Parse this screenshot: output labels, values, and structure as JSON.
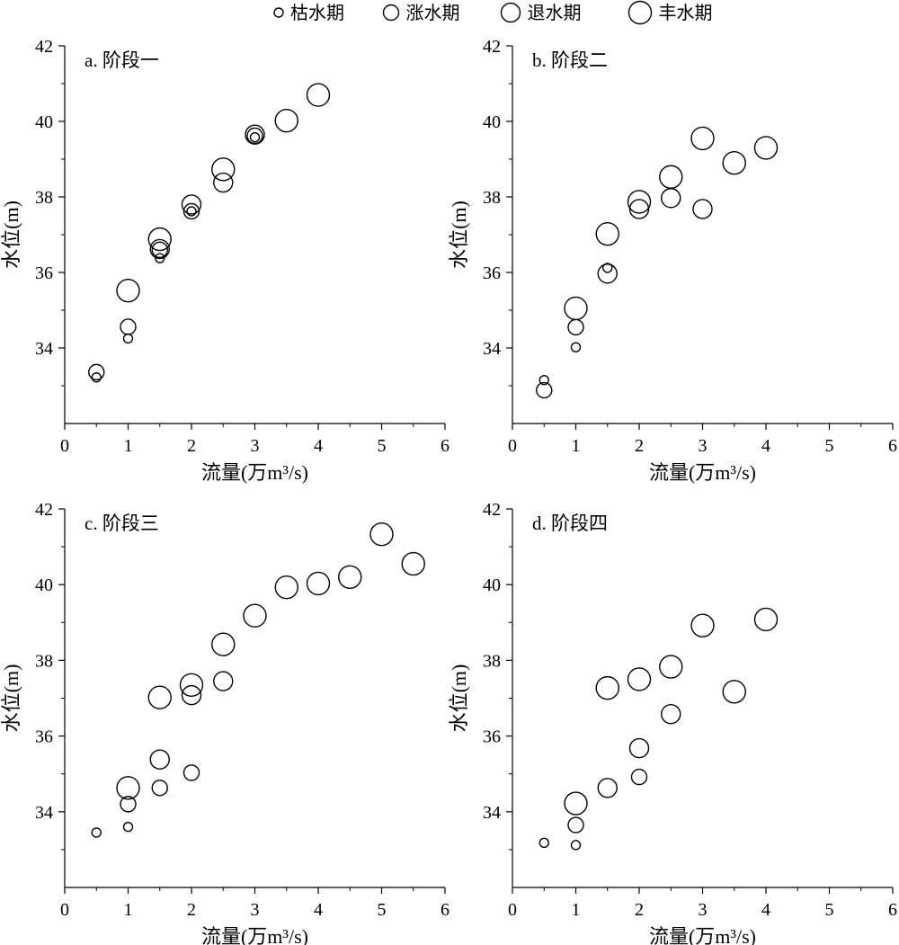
{
  "legend": {
    "entries": [
      {
        "label": "枯水期",
        "size": 1
      },
      {
        "label": "涨水期",
        "size": 2
      },
      {
        "label": "退水期",
        "size": 3
      },
      {
        "label": "丰水期",
        "size": 4
      }
    ]
  },
  "chart_data": [
    {
      "type": "scatter",
      "title": "a. 阶段一",
      "xlabel": "流量(万m³/s)",
      "ylabel": "水位(m)",
      "xlim": [
        0,
        6
      ],
      "ylim": [
        32,
        42
      ],
      "xticks": [
        "0",
        "1",
        "2",
        "3",
        "4",
        "5",
        "6"
      ],
      "yticks": [
        "34",
        "36",
        "38",
        "40",
        "42"
      ],
      "grid": false,
      "series": [
        {
          "name": "枯水期",
          "points": [
            [
              0.5,
              33.22
            ],
            [
              1.0,
              34.25
            ],
            [
              1.5,
              36.38
            ],
            [
              2.0,
              37.62
            ],
            [
              3.0,
              39.58
            ]
          ]
        },
        {
          "name": "涨水期",
          "points": [
            [
              0.5,
              33.36
            ],
            [
              1.0,
              34.56
            ],
            [
              1.5,
              36.6
            ],
            [
              2.0,
              37.62
            ],
            [
              3.0,
              39.62
            ]
          ]
        },
        {
          "name": "退水期",
          "points": [
            [
              1.5,
              36.62
            ],
            [
              2.0,
              37.8
            ],
            [
              2.5,
              38.38
            ],
            [
              3.0,
              39.65
            ]
          ]
        },
        {
          "name": "丰水期",
          "points": [
            [
              1.0,
              35.52
            ],
            [
              1.5,
              36.88
            ],
            [
              2.5,
              38.73
            ],
            [
              3.5,
              40.02
            ],
            [
              4.0,
              40.7
            ]
          ]
        }
      ]
    },
    {
      "type": "scatter",
      "title": "b. 阶段二",
      "xlabel": "流量(万m³/s)",
      "ylabel": "水位(m)",
      "xlim": [
        0,
        6
      ],
      "ylim": [
        32,
        42
      ],
      "xticks": [
        "0",
        "1",
        "2",
        "3",
        "4",
        "5",
        "6"
      ],
      "yticks": [
        "34",
        "36",
        "38",
        "40",
        "42"
      ],
      "grid": false,
      "series": [
        {
          "name": "枯水期",
          "points": [
            [
              0.5,
              33.15
            ],
            [
              1.0,
              34.02
            ],
            [
              1.5,
              36.12
            ]
          ]
        },
        {
          "name": "涨水期",
          "points": [
            [
              0.5,
              32.88
            ],
            [
              1.0,
              34.55
            ]
          ]
        },
        {
          "name": "退水期",
          "points": [
            [
              1.5,
              35.97
            ],
            [
              2.0,
              37.68
            ],
            [
              2.5,
              37.97
            ],
            [
              3.0,
              37.68
            ]
          ]
        },
        {
          "name": "丰水期",
          "points": [
            [
              1.0,
              35.05
            ],
            [
              1.5,
              37.02
            ],
            [
              2.0,
              37.87
            ],
            [
              2.5,
              38.53
            ],
            [
              3.0,
              39.55
            ],
            [
              3.5,
              38.9
            ],
            [
              4.0,
              39.3
            ]
          ]
        }
      ]
    },
    {
      "type": "scatter",
      "title": "c. 阶段三",
      "xlabel": "流量(万m³/s)",
      "ylabel": "水位(m)",
      "xlim": [
        0,
        6
      ],
      "ylim": [
        32,
        42
      ],
      "xticks": [
        "0",
        "1",
        "2",
        "3",
        "4",
        "5",
        "6"
      ],
      "yticks": [
        "34",
        "36",
        "38",
        "40",
        "42"
      ],
      "grid": false,
      "series": [
        {
          "name": "枯水期",
          "points": [
            [
              0.5,
              33.45
            ],
            [
              1.0,
              33.6
            ]
          ]
        },
        {
          "name": "涨水期",
          "points": [
            [
              1.0,
              34.2
            ],
            [
              1.5,
              34.63
            ],
            [
              2.0,
              35.03
            ]
          ]
        },
        {
          "name": "退水期",
          "points": [
            [
              1.5,
              35.38
            ],
            [
              2.0,
              37.08
            ],
            [
              2.5,
              37.45
            ]
          ]
        },
        {
          "name": "丰水期",
          "points": [
            [
              1.0,
              34.63
            ],
            [
              1.5,
              37.02
            ],
            [
              2.0,
              37.35
            ],
            [
              2.5,
              38.42
            ],
            [
              3.0,
              39.18
            ],
            [
              3.5,
              39.93
            ],
            [
              4.0,
              40.03
            ],
            [
              4.5,
              40.2
            ],
            [
              5.0,
              41.33
            ],
            [
              5.5,
              40.55
            ]
          ]
        }
      ]
    },
    {
      "type": "scatter",
      "title": "d. 阶段四",
      "xlabel": "流量(万m³/s)",
      "ylabel": "水位(m)",
      "xlim": [
        0,
        6
      ],
      "ylim": [
        32,
        42
      ],
      "xticks": [
        "0",
        "1",
        "2",
        "3",
        "4",
        "5",
        "6"
      ],
      "yticks": [
        "34",
        "36",
        "38",
        "40",
        "42"
      ],
      "grid": false,
      "series": [
        {
          "name": "枯水期",
          "points": [
            [
              0.5,
              33.18
            ],
            [
              1.0,
              33.12
            ]
          ]
        },
        {
          "name": "涨水期",
          "points": [
            [
              1.0,
              33.65
            ],
            [
              2.0,
              34.92
            ]
          ]
        },
        {
          "name": "退水期",
          "points": [
            [
              1.5,
              34.63
            ],
            [
              2.0,
              35.68
            ],
            [
              2.5,
              36.58
            ]
          ]
        },
        {
          "name": "丰水期",
          "points": [
            [
              1.0,
              34.22
            ],
            [
              1.5,
              37.27
            ],
            [
              2.0,
              37.5
            ],
            [
              2.5,
              37.83
            ],
            [
              3.0,
              38.92
            ],
            [
              3.5,
              37.17
            ],
            [
              4.0,
              39.08
            ]
          ]
        }
      ]
    }
  ]
}
